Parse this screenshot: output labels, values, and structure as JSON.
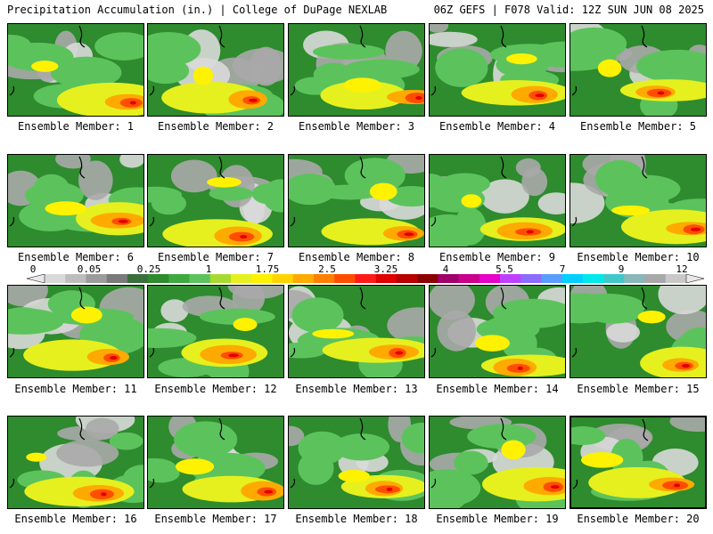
{
  "header": {
    "left": "Precipitation Accumulation (in.) | College of DuPage NEXLAB",
    "right": "06Z GEFS | F078 Valid: 12Z SUN JUN 08 2025"
  },
  "panels": [
    {
      "member": 1,
      "label": "Ensemble Member: 1"
    },
    {
      "member": 2,
      "label": "Ensemble Member: 2"
    },
    {
      "member": 3,
      "label": "Ensemble Member: 3"
    },
    {
      "member": 4,
      "label": "Ensemble Member: 4"
    },
    {
      "member": 5,
      "label": "Ensemble Member: 5"
    },
    {
      "member": 6,
      "label": "Ensemble Member: 6"
    },
    {
      "member": 7,
      "label": "Ensemble Member: 7"
    },
    {
      "member": 8,
      "label": "Ensemble Member: 8"
    },
    {
      "member": 9,
      "label": "Ensemble Member: 9"
    },
    {
      "member": 10,
      "label": "Ensemble Member: 10"
    },
    {
      "member": 11,
      "label": "Ensemble Member: 11"
    },
    {
      "member": 12,
      "label": "Ensemble Member: 12"
    },
    {
      "member": 13,
      "label": "Ensemble Member: 13"
    },
    {
      "member": 14,
      "label": "Ensemble Member: 14"
    },
    {
      "member": 15,
      "label": "Ensemble Member: 15"
    },
    {
      "member": 16,
      "label": "Ensemble Member: 16"
    },
    {
      "member": 17,
      "label": "Ensemble Member: 17"
    },
    {
      "member": 18,
      "label": "Ensemble Member: 18"
    },
    {
      "member": 19,
      "label": "Ensemble Member: 19"
    },
    {
      "member": 20,
      "label": "Ensemble Member: 20"
    }
  ],
  "colorbar": {
    "tick_labels": [
      "0",
      "0.05",
      "0.25",
      "1",
      "1.75",
      "2.5",
      "3.25",
      "4",
      "5.5",
      "7",
      "9",
      "12"
    ],
    "colors": [
      "#d9d9d9",
      "#bdbdbd",
      "#9c9c9c",
      "#7a7a7a",
      "#3a6e3a",
      "#2e8b2e",
      "#3fa83f",
      "#5cc35c",
      "#a8d930",
      "#e6f01e",
      "#fff200",
      "#ffd400",
      "#ffaa00",
      "#ff7f00",
      "#ff4d00",
      "#ff1a1a",
      "#e00000",
      "#b80000",
      "#8b0000",
      "#a0006a",
      "#c8008c",
      "#e600c8",
      "#c040ff",
      "#8c6cff",
      "#5a9cff",
      "#00d0ff",
      "#00e8e8",
      "#40c8c8",
      "#88b8b8",
      "#a8a8a8",
      "#c8c8c8"
    ]
  }
}
